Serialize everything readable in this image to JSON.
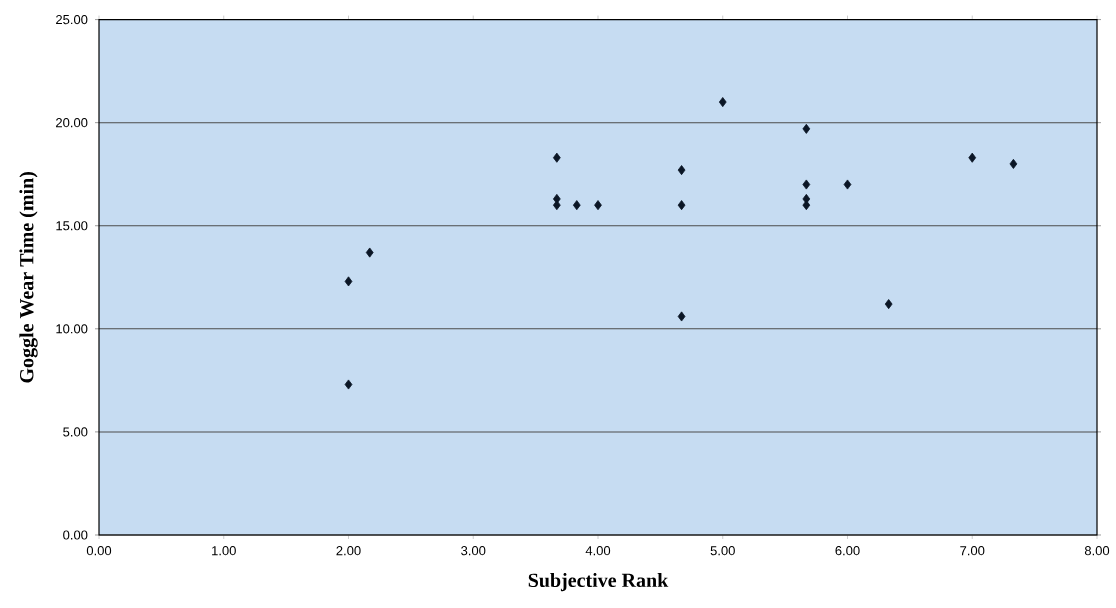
{
  "chart_data": {
    "type": "scatter",
    "xlabel": "Subjective Rank",
    "ylabel": "Goggle Wear Time (min)",
    "x": [
      2.0,
      2.0,
      2.17,
      3.67,
      3.67,
      3.67,
      3.83,
      4.0,
      4.67,
      4.67,
      4.67,
      5.0,
      5.67,
      5.67,
      5.67,
      5.67,
      6.0,
      6.33,
      7.0,
      7.33
    ],
    "values": [
      12.3,
      7.3,
      13.7,
      18.3,
      16.3,
      16.0,
      16.0,
      16.0,
      17.7,
      16.0,
      10.6,
      21.0,
      19.7,
      17.0,
      16.3,
      16.0,
      17.0,
      11.2,
      18.3,
      18.0
    ],
    "color": "#0b1626",
    "marker": "diamond",
    "grid": "y",
    "xlim": [
      0,
      8
    ],
    "ylim": [
      0,
      25
    ],
    "xticks": [
      {
        "value": 0,
        "label": "0.00"
      },
      {
        "value": 1,
        "label": "1.00"
      },
      {
        "value": 2,
        "label": "2.00"
      },
      {
        "value": 3,
        "label": "3.00"
      },
      {
        "value": 4,
        "label": "4.00"
      },
      {
        "value": 5,
        "label": "5.00"
      },
      {
        "value": 6,
        "label": "6.00"
      },
      {
        "value": 7,
        "label": "7.00"
      },
      {
        "value": 8,
        "label": "8.00"
      }
    ],
    "yticks": [
      {
        "value": 0,
        "label": "0.00"
      },
      {
        "value": 5,
        "label": "5.00"
      },
      {
        "value": 10,
        "label": "10.00"
      },
      {
        "value": 15,
        "label": "15.00"
      },
      {
        "value": 20,
        "label": "20.00"
      },
      {
        "value": 25,
        "label": "25.00"
      }
    ]
  }
}
